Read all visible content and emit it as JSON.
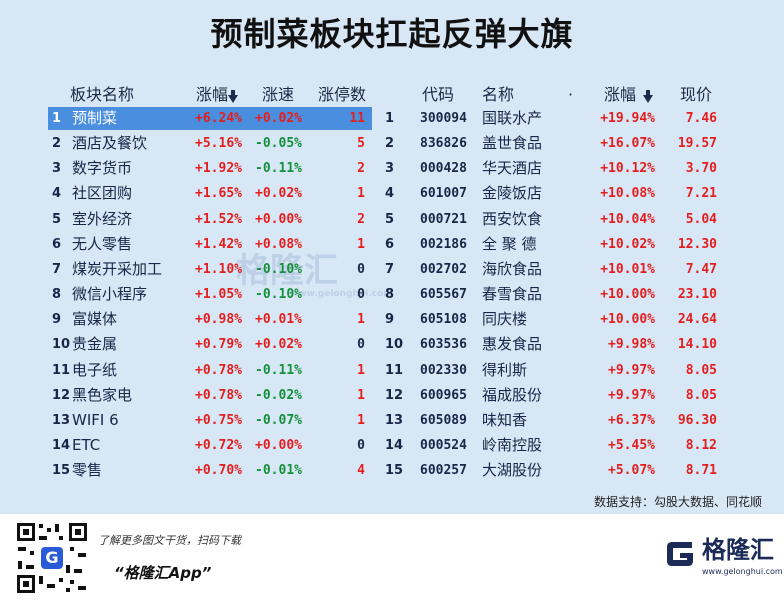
{
  "header": {
    "title": "预制菜板块扛起反弹大旗"
  },
  "left_table": {
    "columns": [
      "板块名称",
      "涨幅",
      "涨速",
      "涨停数"
    ],
    "rows": [
      [
        "1",
        "预制菜",
        "+6.24%",
        "+0.02%",
        "11"
      ],
      [
        "2",
        "酒店及餐饮",
        "+5.16%",
        "-0.05%",
        "5"
      ],
      [
        "3",
        "数字货币",
        "+1.92%",
        "-0.11%",
        "2"
      ],
      [
        "4",
        "社区团购",
        "+1.65%",
        "+0.02%",
        "1"
      ],
      [
        "5",
        "室外经济",
        "+1.52%",
        "+0.00%",
        "2"
      ],
      [
        "6",
        "无人零售",
        "+1.42%",
        "+0.08%",
        "1"
      ],
      [
        "7",
        "煤炭开采加工",
        "+1.10%",
        "-0.10%",
        "0"
      ],
      [
        "8",
        "微信小程序",
        "+1.05%",
        "-0.10%",
        "0"
      ],
      [
        "9",
        "富媒体",
        "+0.98%",
        "+0.01%",
        "1"
      ],
      [
        "10",
        "贵金属",
        "+0.79%",
        "+0.02%",
        "0"
      ],
      [
        "11",
        "电子纸",
        "+0.78%",
        "-0.11%",
        "1"
      ],
      [
        "12",
        "黑色家电",
        "+0.78%",
        "-0.02%",
        "1"
      ],
      [
        "13",
        "WIFI 6",
        "+0.75%",
        "-0.07%",
        "1"
      ],
      [
        "14",
        "ETC",
        "+0.72%",
        "+0.00%",
        "0"
      ],
      [
        "15",
        "零售",
        "+0.70%",
        "-0.01%",
        "4"
      ]
    ]
  },
  "right_table": {
    "columns": [
      "代码",
      "名称",
      "·",
      "涨幅",
      "现价"
    ],
    "rows": [
      [
        "1",
        "300094",
        "国联水产",
        "+19.94%",
        "7.46"
      ],
      [
        "2",
        "836826",
        "盖世食品",
        "+16.07%",
        "19.57"
      ],
      [
        "3",
        "000428",
        "华天酒店",
        "+10.12%",
        "3.70"
      ],
      [
        "4",
        "601007",
        "金陵饭店",
        "+10.08%",
        "7.21"
      ],
      [
        "5",
        "000721",
        "西安饮食",
        "+10.04%",
        "5.04"
      ],
      [
        "6",
        "002186",
        "全 聚 德",
        "+10.02%",
        "12.30"
      ],
      [
        "7",
        "002702",
        "海欣食品",
        "+10.01%",
        "7.47"
      ],
      [
        "8",
        "605567",
        "春雪食品",
        "+10.00%",
        "23.10"
      ],
      [
        "9",
        "605108",
        "同庆楼",
        "+10.00%",
        "24.64"
      ],
      [
        "10",
        "603536",
        "惠发食品",
        "+9.98%",
        "14.10"
      ],
      [
        "11",
        "002330",
        "得利斯",
        "+9.97%",
        "8.05"
      ],
      [
        "12",
        "600965",
        "福成股份",
        "+9.97%",
        "8.05"
      ],
      [
        "13",
        "605089",
        "味知香",
        "+6.37%",
        "96.30"
      ],
      [
        "14",
        "000524",
        "岭南控股",
        "+5.45%",
        "8.12"
      ],
      [
        "15",
        "600257",
        "大湖股份",
        "+5.07%",
        "8.71"
      ]
    ]
  },
  "watermark": {
    "brand": "格隆汇",
    "url": "www.gelonghui.com"
  },
  "source": "数据支持：勾股大数据、同花顺",
  "footer": {
    "promo": "了解更多图文干货，扫码下载",
    "app": "“格隆汇App”",
    "brand": "格隆汇",
    "url": "www.gelonghui.com"
  }
}
